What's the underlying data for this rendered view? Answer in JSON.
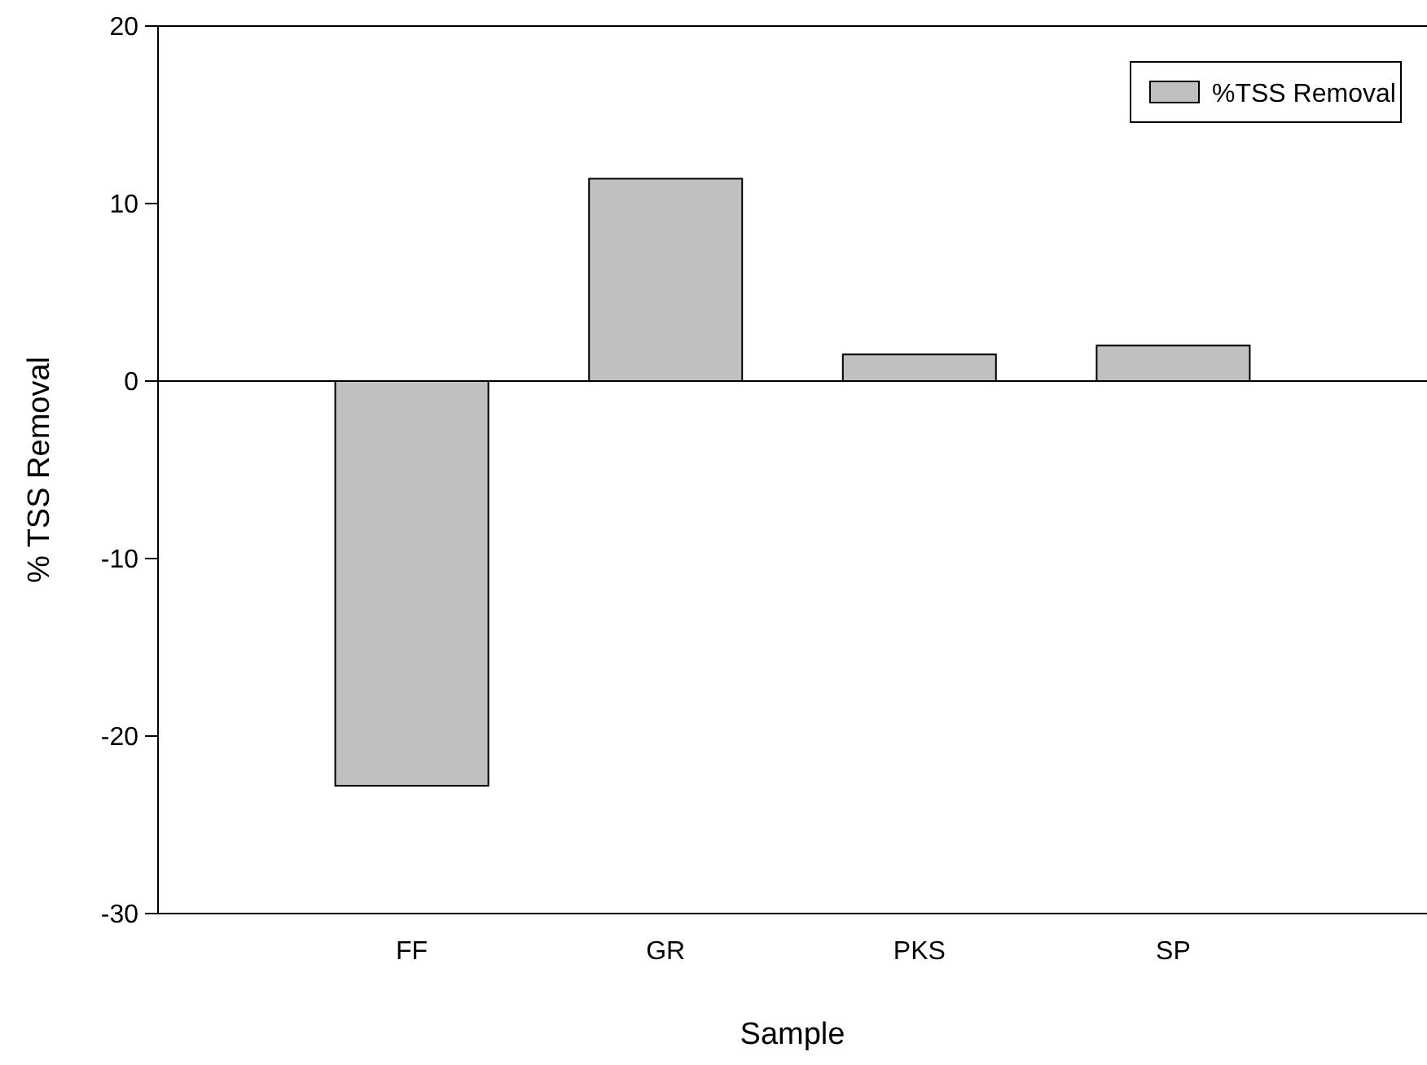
{
  "chart_data": {
    "type": "bar",
    "xlabel": "Sample",
    "ylabel": "% TSS Removal",
    "categories": [
      "FF",
      "GR",
      "PKS",
      "SP"
    ],
    "series": [
      {
        "name": "%TSS Removal",
        "color": "#c0c0c0",
        "values": [
          -22.8,
          11.4,
          1.5,
          2.0
        ]
      }
    ],
    "ylim": [
      -30,
      20
    ],
    "yticks": [
      -30,
      -20,
      -10,
      0,
      10,
      20
    ],
    "legend": "top right",
    "ref_lines": [
      {
        "axis": "y",
        "value": 0
      }
    ]
  }
}
